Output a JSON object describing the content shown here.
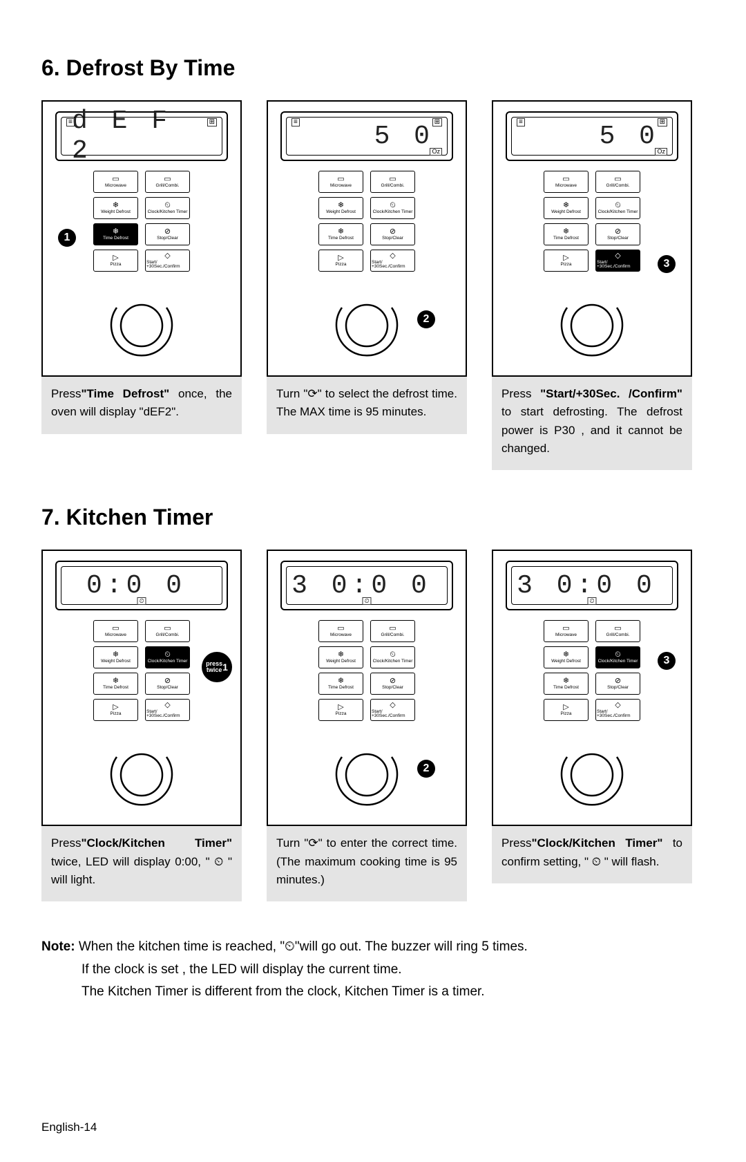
{
  "section6": {
    "title": "6. Defrost By Time",
    "steps": [
      {
        "display": "d E F 2",
        "displayAlign": "left",
        "showOz": false,
        "showClockBottom": false,
        "topIcons": true,
        "activeButtonIdx": 4,
        "callout": {
          "type": "num",
          "text": "1",
          "pos": "left-btn-row3"
        },
        "caption_pre": "Press",
        "caption_bold": "\"Time Defrost\"",
        "caption_post": " once, the oven will display \"dEF2\"."
      },
      {
        "display": "5 0",
        "displayAlign": "right",
        "showOz": true,
        "showClockBottom": false,
        "topIcons": true,
        "activeButtonIdx": null,
        "callout": {
          "type": "num",
          "text": "2",
          "pos": "dial-right"
        },
        "caption_plain": "Turn \"⟳\" to select the defrost time. The MAX time is 95 minutes."
      },
      {
        "display": "5 0",
        "displayAlign": "right",
        "showOz": true,
        "showClockBottom": false,
        "topIcons": true,
        "activeButtonIdx": 7,
        "callout": {
          "type": "num",
          "text": "3",
          "pos": "right-btn-row4"
        },
        "caption_pre": "Press ",
        "caption_bold": "\"Start/+30Sec. /Confirm\"",
        "caption_post": " to start defrosting. The defrost power is P30 , and it cannot be changed."
      }
    ]
  },
  "section7": {
    "title": "7. Kitchen Timer",
    "steps": [
      {
        "display": "0:0 0",
        "displayAlign": "center",
        "showOz": false,
        "showClockBottom": true,
        "topIcons": false,
        "activeButtonIdx": 3,
        "callout": {
          "type": "text",
          "text": "press twice 1",
          "pos": "right-btn-row2"
        },
        "caption_pre": "Press",
        "caption_bold": "\"Clock/Kitchen Timer\"",
        "caption_post": " twice, LED will display 0:00, \" ⏲ \" will light."
      },
      {
        "display": "3 0:0 0",
        "displayAlign": "center",
        "showOz": false,
        "showClockBottom": true,
        "topIcons": false,
        "activeButtonIdx": null,
        "callout": {
          "type": "num",
          "text": "2",
          "pos": "dial-right"
        },
        "caption_plain": "Turn \"⟳\" to enter the correct time.(The maximum cooking time is 95 minutes.)"
      },
      {
        "display": "3 0:0 0",
        "displayAlign": "center",
        "showOz": false,
        "showClockBottom": true,
        "topIcons": false,
        "activeButtonIdx": 3,
        "callout": {
          "type": "num",
          "text": "3",
          "pos": "right-btn-row2"
        },
        "caption_pre": "Press",
        "caption_bold": "\"Clock/Kitchen Timer\"",
        "caption_post": " to confirm setting, \" ⏲ \" will flash."
      }
    ]
  },
  "buttons": [
    {
      "icon": "▭",
      "label": "Microwave"
    },
    {
      "icon": "▭",
      "label": "Grill/Combi."
    },
    {
      "icon": "❄",
      "label": "Weight Defrost"
    },
    {
      "icon": "⏲",
      "label": "Clock/Kitchen Timer"
    },
    {
      "icon": "❄",
      "label": "Time Defrost"
    },
    {
      "icon": "⊘",
      "label": "Stop/Clear"
    },
    {
      "icon": "▷",
      "label": "Pizza"
    },
    {
      "icon": "◇",
      "label": "Start/ +30Sec./Confirm"
    }
  ],
  "note": {
    "label": "Note:",
    "line1": " When the kitchen time is reached, \"⏲\"will go out. The buzzer will ring 5 times.",
    "line2": "If the clock is set , the LED will display the current time.",
    "line3": "The Kitchen Timer is different from the clock, Kitchen Timer is a timer."
  },
  "pageNum": "English-14",
  "colors": {
    "captionBg": "#e4e4e4",
    "border": "#000000",
    "text": "#000000"
  }
}
